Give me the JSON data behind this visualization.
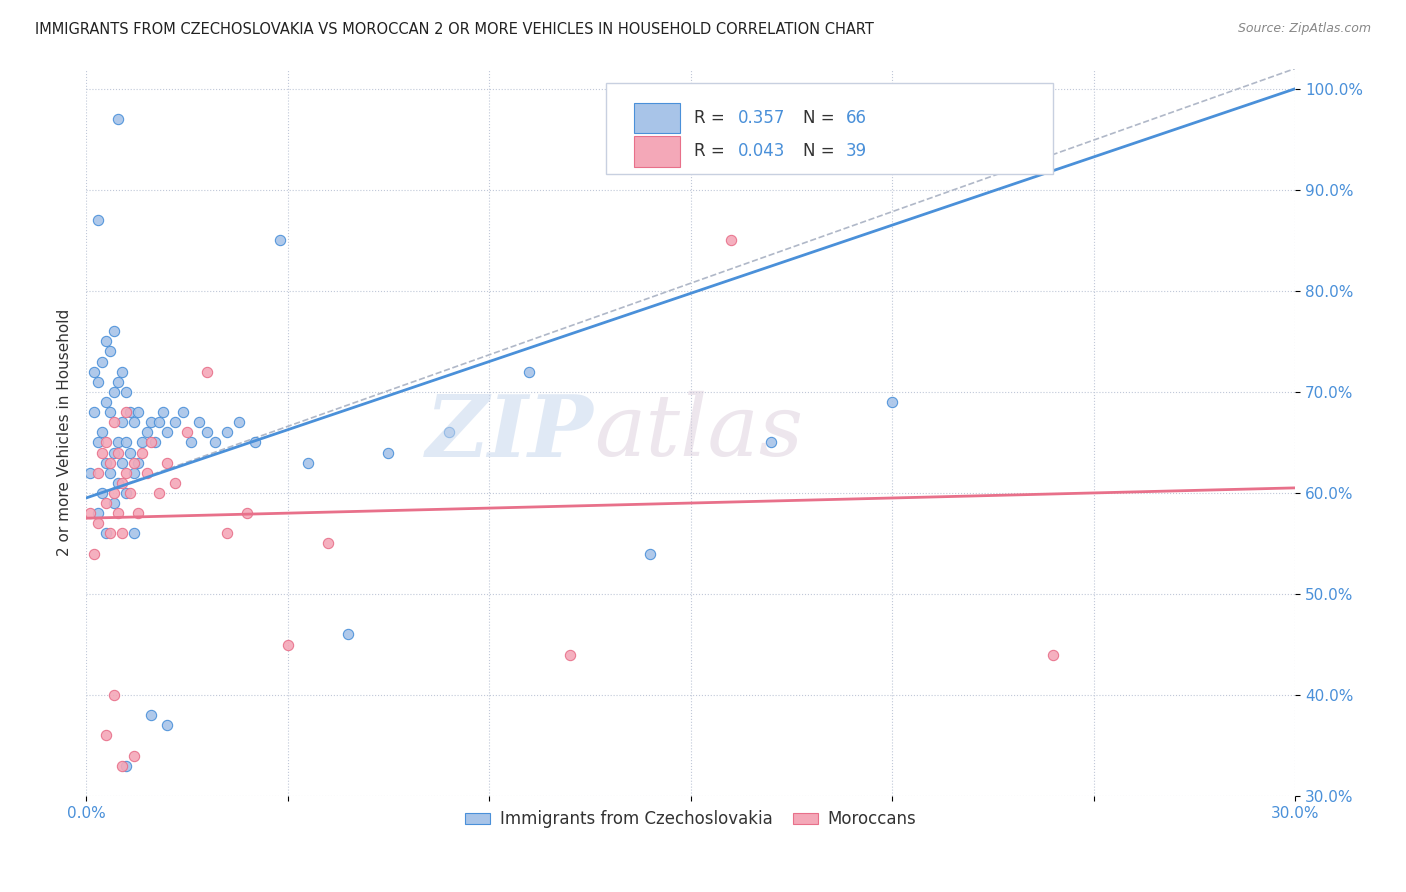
{
  "title": "IMMIGRANTS FROM CZECHOSLOVAKIA VS MOROCCAN 2 OR MORE VEHICLES IN HOUSEHOLD CORRELATION CHART",
  "source": "Source: ZipAtlas.com",
  "ylabel": "2 or more Vehicles in Household",
  "x_min": 0.0,
  "x_max": 0.3,
  "y_min": 0.3,
  "y_max": 1.02,
  "blue_R": "0.357",
  "blue_N": "66",
  "pink_R": "0.043",
  "pink_N": "39",
  "blue_color": "#a8c4e8",
  "pink_color": "#f4a8b8",
  "blue_line_color": "#4a90d9",
  "pink_line_color": "#e8708a",
  "dashed_line_color": "#b0b8c8",
  "watermark_zip": "ZIP",
  "watermark_atlas": "atlas",
  "legend_label_blue": "Immigrants from Czechoslovakia",
  "legend_label_pink": "Moroccans",
  "blue_line_x0": 0.0,
  "blue_line_y0": 0.595,
  "blue_line_x1": 0.3,
  "blue_line_y1": 1.0,
  "pink_line_x0": 0.0,
  "pink_line_y0": 0.575,
  "pink_line_x1": 0.3,
  "pink_line_y1": 0.605,
  "dash_line_x0": 0.0,
  "dash_line_y0": 0.595,
  "dash_line_x1": 0.3,
  "dash_line_y1": 1.02,
  "blue_scatter_x": [
    0.001,
    0.002,
    0.002,
    0.003,
    0.003,
    0.003,
    0.004,
    0.004,
    0.004,
    0.005,
    0.005,
    0.005,
    0.005,
    0.006,
    0.006,
    0.006,
    0.007,
    0.007,
    0.007,
    0.007,
    0.008,
    0.008,
    0.008,
    0.009,
    0.009,
    0.009,
    0.01,
    0.01,
    0.01,
    0.011,
    0.011,
    0.012,
    0.012,
    0.013,
    0.013,
    0.014,
    0.015,
    0.016,
    0.017,
    0.018,
    0.019,
    0.02,
    0.022,
    0.024,
    0.026,
    0.028,
    0.03,
    0.032,
    0.035,
    0.038,
    0.042,
    0.048,
    0.055,
    0.065,
    0.075,
    0.09,
    0.11,
    0.14,
    0.17,
    0.2,
    0.003,
    0.008,
    0.01,
    0.012,
    0.016,
    0.02
  ],
  "blue_scatter_y": [
    0.62,
    0.68,
    0.72,
    0.58,
    0.65,
    0.71,
    0.6,
    0.66,
    0.73,
    0.56,
    0.63,
    0.69,
    0.75,
    0.62,
    0.68,
    0.74,
    0.59,
    0.64,
    0.7,
    0.76,
    0.61,
    0.65,
    0.71,
    0.63,
    0.67,
    0.72,
    0.6,
    0.65,
    0.7,
    0.64,
    0.68,
    0.62,
    0.67,
    0.63,
    0.68,
    0.65,
    0.66,
    0.67,
    0.65,
    0.67,
    0.68,
    0.66,
    0.67,
    0.68,
    0.65,
    0.67,
    0.66,
    0.65,
    0.66,
    0.67,
    0.65,
    0.85,
    0.63,
    0.46,
    0.64,
    0.66,
    0.72,
    0.54,
    0.65,
    0.69,
    0.87,
    0.97,
    0.33,
    0.56,
    0.38,
    0.37
  ],
  "pink_scatter_x": [
    0.001,
    0.002,
    0.003,
    0.003,
    0.004,
    0.005,
    0.005,
    0.006,
    0.006,
    0.007,
    0.007,
    0.008,
    0.008,
    0.009,
    0.009,
    0.01,
    0.01,
    0.011,
    0.012,
    0.013,
    0.014,
    0.015,
    0.016,
    0.018,
    0.02,
    0.022,
    0.025,
    0.03,
    0.035,
    0.04,
    0.05,
    0.06,
    0.12,
    0.16,
    0.24,
    0.005,
    0.007,
    0.009,
    0.012
  ],
  "pink_scatter_y": [
    0.58,
    0.54,
    0.62,
    0.57,
    0.64,
    0.59,
    0.65,
    0.56,
    0.63,
    0.6,
    0.67,
    0.58,
    0.64,
    0.61,
    0.56,
    0.62,
    0.68,
    0.6,
    0.63,
    0.58,
    0.64,
    0.62,
    0.65,
    0.6,
    0.63,
    0.61,
    0.66,
    0.72,
    0.56,
    0.58,
    0.45,
    0.55,
    0.44,
    0.85,
    0.44,
    0.36,
    0.4,
    0.33,
    0.34
  ]
}
